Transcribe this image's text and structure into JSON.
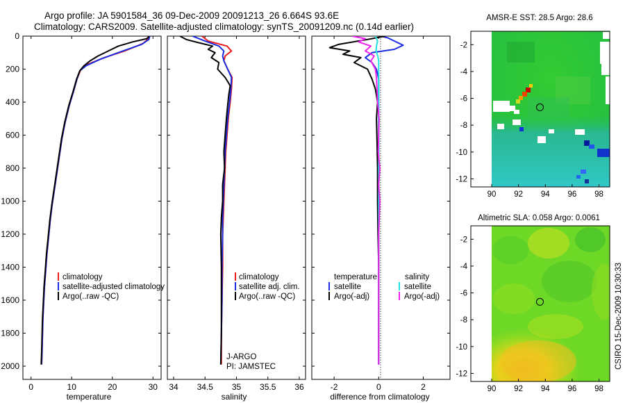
{
  "title": {
    "line1": "Argo profile: JA 5901584_36 09-Dec-2009 20091213_26 6.664S 93.6E",
    "line2": "Climatology: CARS2009. Satellite-adjusted climatology: synTS_20091209.nc (0.14d earlier)"
  },
  "side_text": "CSIRO 15-Dec-2009 10:30:33",
  "colors": {
    "climatology": "#e81c1c",
    "satellite": "#1a2be0",
    "argo": "#000000",
    "sal_satellite": "#22e0e0",
    "sal_argo": "#ee22ee"
  },
  "chart_data": [
    {
      "id": "temperature",
      "type": "line",
      "xlabel": "temperature",
      "ylabel": "",
      "xlim": [
        -2,
        32
      ],
      "ylim": [
        2080,
        0
      ],
      "xticks": [
        0,
        10,
        20,
        30
      ],
      "yticks": [
        0,
        200,
        400,
        600,
        800,
        1000,
        1200,
        1400,
        1600,
        1800,
        2000
      ],
      "series": [
        {
          "name": "climatology",
          "color": "#e81c1c",
          "points": [
            [
              28.9,
              0
            ],
            [
              28.7,
              20
            ],
            [
              27.5,
              45
            ],
            [
              23,
              90
            ],
            [
              18,
              130
            ],
            [
              14,
              170
            ],
            [
              12.2,
              205
            ],
            [
              11.3,
              260
            ],
            [
              10.5,
              330
            ],
            [
              9.4,
              420
            ],
            [
              8.4,
              520
            ],
            [
              7.6,
              620
            ],
            [
              7,
              720
            ],
            [
              6.4,
              820
            ],
            [
              5.8,
              920
            ],
            [
              5.2,
              1020
            ],
            [
              4.7,
              1120
            ],
            [
              4.3,
              1220
            ],
            [
              3.9,
              1320
            ],
            [
              3.6,
              1420
            ],
            [
              3.3,
              1520
            ],
            [
              3.1,
              1620
            ],
            [
              2.9,
              1720
            ],
            [
              2.8,
              1820
            ],
            [
              2.7,
              1920
            ],
            [
              2.6,
              1990
            ]
          ]
        },
        {
          "name": "satellite-adjusted climatology",
          "color": "#1a2be0",
          "points": [
            [
              29.2,
              0
            ],
            [
              29,
              20
            ],
            [
              27.2,
              50
            ],
            [
              22,
              95
            ],
            [
              17,
              140
            ],
            [
              13.5,
              180
            ],
            [
              12,
              210
            ],
            [
              11.3,
              260
            ],
            [
              10.5,
              330
            ],
            [
              9.4,
              420
            ],
            [
              8.4,
              520
            ],
            [
              7.6,
              620
            ],
            [
              7,
              720
            ],
            [
              6.4,
              820
            ],
            [
              5.8,
              920
            ],
            [
              5.2,
              1020
            ],
            [
              4.7,
              1120
            ],
            [
              4.3,
              1220
            ],
            [
              3.9,
              1320
            ],
            [
              3.6,
              1420
            ],
            [
              3.3,
              1520
            ],
            [
              3.1,
              1620
            ],
            [
              2.9,
              1720
            ],
            [
              2.8,
              1820
            ],
            [
              2.7,
              1920
            ],
            [
              2.6,
              1990
            ]
          ]
        },
        {
          "name": "Argo(..raw -QC)",
          "color": "#000000",
          "points": [
            [
              29.1,
              0
            ],
            [
              28.5,
              15
            ],
            [
              25,
              35
            ],
            [
              21.5,
              60
            ],
            [
              19,
              90
            ],
            [
              16.5,
              120
            ],
            [
              14.5,
              150
            ],
            [
              13,
              180
            ],
            [
              12,
              210
            ],
            [
              11.2,
              260
            ],
            [
              10.4,
              330
            ],
            [
              9.3,
              420
            ],
            [
              8.3,
              520
            ],
            [
              7.5,
              620
            ],
            [
              6.9,
              720
            ],
            [
              6.3,
              820
            ],
            [
              5.7,
              920
            ],
            [
              5.1,
              1020
            ],
            [
              4.6,
              1120
            ],
            [
              4.2,
              1220
            ],
            [
              3.8,
              1320
            ],
            [
              3.5,
              1420
            ],
            [
              3.2,
              1520
            ],
            [
              3,
              1620
            ],
            [
              2.8,
              1720
            ],
            [
              2.7,
              1820
            ],
            [
              2.6,
              1920
            ],
            [
              2.5,
              1990
            ]
          ]
        }
      ],
      "legend": {
        "placement": "lower-left",
        "entries": [
          "climatology",
          "satellite-adjusted climatology",
          "Argo(..raw -QC)"
        ]
      }
    },
    {
      "id": "salinity",
      "type": "line",
      "xlabel": "salinity",
      "xlim": [
        33.9,
        36.1
      ],
      "ylim": [
        2080,
        0
      ],
      "xticks": [
        34,
        34.5,
        35,
        35.5,
        36
      ],
      "series": [
        {
          "name": "climatology",
          "color": "#e81c1c",
          "points": [
            [
              34.45,
              0
            ],
            [
              34.55,
              30
            ],
            [
              34.85,
              60
            ],
            [
              34.92,
              90
            ],
            [
              34.82,
              120
            ],
            [
              34.8,
              150
            ],
            [
              34.86,
              200
            ],
            [
              34.93,
              250
            ],
            [
              34.92,
              320
            ],
            [
              34.9,
              400
            ],
            [
              34.87,
              500
            ],
            [
              34.85,
              600
            ],
            [
              34.83,
              700
            ],
            [
              34.82,
              800
            ],
            [
              34.81,
              900
            ],
            [
              34.8,
              1000
            ],
            [
              34.79,
              1100
            ],
            [
              34.78,
              1200
            ],
            [
              34.78,
              1400
            ],
            [
              34.77,
              1600
            ],
            [
              34.76,
              1800
            ],
            [
              34.76,
              1990
            ]
          ]
        },
        {
          "name": "satellite adj. clim.",
          "color": "#1a2be0",
          "points": [
            [
              34.3,
              0
            ],
            [
              34.5,
              30
            ],
            [
              34.72,
              60
            ],
            [
              34.8,
              90
            ],
            [
              34.78,
              120
            ],
            [
              34.8,
              150
            ],
            [
              34.86,
              200
            ],
            [
              34.92,
              250
            ],
            [
              34.91,
              320
            ],
            [
              34.89,
              400
            ],
            [
              34.86,
              500
            ],
            [
              34.84,
              600
            ],
            [
              34.82,
              700
            ],
            [
              34.81,
              800
            ],
            [
              34.8,
              900
            ],
            [
              34.79,
              1000
            ],
            [
              34.78,
              1100
            ],
            [
              34.78,
              1200
            ],
            [
              34.77,
              1400
            ],
            [
              34.77,
              1600
            ],
            [
              34.76,
              1800
            ],
            [
              34.75,
              1990
            ]
          ]
        },
        {
          "name": "Argo(..raw -QC)",
          "color": "#000000",
          "points": [
            [
              34.1,
              0
            ],
            [
              34.2,
              20
            ],
            [
              34.4,
              40
            ],
            [
              34.62,
              60
            ],
            [
              34.55,
              80
            ],
            [
              34.66,
              100
            ],
            [
              34.6,
              130
            ],
            [
              34.72,
              160
            ],
            [
              34.7,
              200
            ],
            [
              34.82,
              250
            ],
            [
              34.9,
              300
            ],
            [
              34.88,
              350
            ],
            [
              34.86,
              420
            ],
            [
              34.84,
              500
            ],
            [
              34.82,
              600
            ],
            [
              34.8,
              700
            ],
            [
              34.81,
              800
            ],
            [
              34.78,
              900
            ],
            [
              34.78,
              1000
            ],
            [
              34.76,
              1100
            ],
            [
              34.75,
              1200
            ],
            [
              34.76,
              1400
            ],
            [
              34.76,
              1600
            ],
            [
              34.76,
              1800
            ],
            [
              34.75,
              1990
            ]
          ]
        }
      ],
      "legend": {
        "placement": "lower-right",
        "entries": [
          "climatology",
          "satellite adj. clim.",
          "Argo(..raw -QC)"
        ]
      },
      "annotations": [
        "J-ARGO",
        "PI: JAMSTEC"
      ]
    },
    {
      "id": "difference",
      "type": "line",
      "xlabel": "difference from climatology",
      "xlim": [
        -3,
        3.2
      ],
      "ylim": [
        2080,
        0
      ],
      "xticks": [
        -2,
        0,
        2
      ],
      "series": [
        {
          "name": "temperature satellite",
          "color": "#1a2be0",
          "points": [
            [
              0.1,
              0
            ],
            [
              0.4,
              10
            ],
            [
              1.1,
              55
            ],
            [
              0.7,
              80
            ],
            [
              -0.3,
              100
            ],
            [
              -0.6,
              130
            ],
            [
              -0.3,
              160
            ],
            [
              -0.1,
              200
            ],
            [
              0,
              260
            ],
            [
              0,
              400
            ],
            [
              0,
              600
            ],
            [
              0,
              1000
            ],
            [
              0,
              1400
            ],
            [
              0,
              1990
            ]
          ]
        },
        {
          "name": "temperature Argo(-adj)",
          "color": "#000000",
          "points": [
            [
              0.3,
              0
            ],
            [
              -0.5,
              20
            ],
            [
              -1.8,
              50
            ],
            [
              -2.2,
              70
            ],
            [
              -1.3,
              90
            ],
            [
              -1.6,
              110
            ],
            [
              -0.8,
              130
            ],
            [
              -1.1,
              160
            ],
            [
              -0.5,
              200
            ],
            [
              -0.3,
              260
            ],
            [
              -0.15,
              320
            ],
            [
              -0.05,
              400
            ],
            [
              -0.1,
              500
            ],
            [
              -0.08,
              600
            ],
            [
              -0.05,
              800
            ],
            [
              -0.05,
              1000
            ],
            [
              -0.03,
              1200
            ],
            [
              0,
              1400
            ],
            [
              0,
              1600
            ],
            [
              0,
              1990
            ]
          ]
        },
        {
          "name": "salinity satellite",
          "color": "#22e0e0",
          "points": [
            [
              -0.15,
              0
            ],
            [
              -0.05,
              30
            ],
            [
              -0.1,
              60
            ],
            [
              -0.12,
              90
            ],
            [
              -0.04,
              120
            ],
            [
              0,
              150
            ],
            [
              0,
              400
            ],
            [
              0,
              1000
            ],
            [
              0,
              1990
            ]
          ]
        },
        {
          "name": "salinity Argo(-adj)",
          "color": "#ee22ee",
          "points": [
            [
              -1.2,
              0
            ],
            [
              -0.6,
              15
            ],
            [
              -0.9,
              35
            ],
            [
              -0.35,
              60
            ],
            [
              -0.6,
              90
            ],
            [
              -0.2,
              120
            ],
            [
              -0.35,
              150
            ],
            [
              -0.15,
              200
            ],
            [
              -0.1,
              250
            ],
            [
              -0.05,
              400
            ],
            [
              0.02,
              500
            ],
            [
              -0.02,
              700
            ],
            [
              0.05,
              800
            ],
            [
              0,
              900
            ],
            [
              0.05,
              1000
            ],
            [
              0,
              1200
            ],
            [
              0,
              1990
            ]
          ]
        }
      ],
      "legend": {
        "placement": "lower-center",
        "temperature_header": "temperature",
        "salinity_header": "salinity",
        "temperature_entries": [
          "satellite",
          "Argo(-adj)"
        ],
        "salinity_entries": [
          "satellite",
          "Argo(-adj)"
        ]
      }
    },
    {
      "id": "sst_map",
      "type": "heatmap",
      "title": "AMSR-E SST: 28.5 Argo: 28.6",
      "xlim": [
        89,
        98.8
      ],
      "ylim": [
        -12.6,
        -1
      ],
      "xticks": [
        90,
        92,
        94,
        96,
        98
      ],
      "yticks": [
        -2,
        -4,
        -6,
        -8,
        -10,
        -12
      ],
      "argo_position": [
        93.6,
        -6.664
      ]
    },
    {
      "id": "sla_map",
      "type": "heatmap",
      "title": "Altimetric SLA: 0.058 Argo: 0.0061",
      "xlim": [
        89,
        98.8
      ],
      "ylim": [
        -12.6,
        -1
      ],
      "xticks": [
        90,
        92,
        94,
        96,
        98
      ],
      "yticks": [
        -2,
        -4,
        -6,
        -8,
        -10,
        -12
      ],
      "argo_position": [
        93.6,
        -6.664
      ]
    }
  ]
}
